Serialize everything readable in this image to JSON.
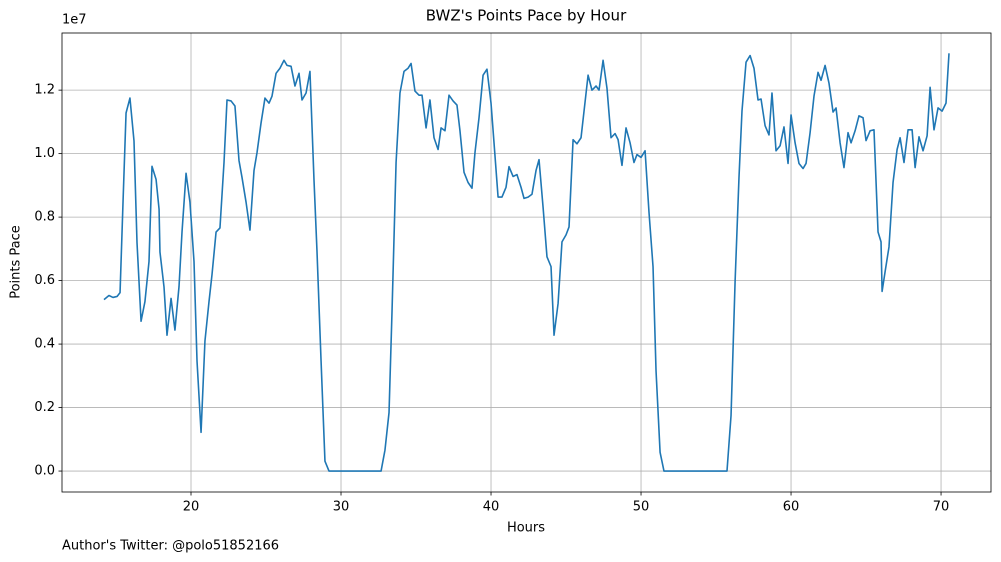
{
  "chart_data": {
    "type": "line",
    "title": "BWZ's Points Pace by Hour",
    "x_label": "Hours",
    "y_label": "Points Pace",
    "y_offset_label": "1e7",
    "footnote": "Author's Twitter: @polo51852166",
    "color": "#1f77b4",
    "grid": true,
    "x": [
      14.2,
      14.53,
      14.8,
      15.07,
      15.27,
      15.47,
      15.67,
      15.93,
      16.2,
      16.4,
      16.67,
      16.93,
      17.2,
      17.4,
      17.67,
      17.87,
      17.93,
      18.2,
      18.4,
      18.67,
      18.93,
      19.2,
      19.4,
      19.67,
      19.93,
      20.2,
      20.4,
      20.67,
      20.93,
      21.2,
      21.4,
      21.67,
      21.93,
      22.2,
      22.4,
      22.67,
      22.93,
      23.2,
      23.4,
      23.67,
      23.93,
      24.2,
      24.4,
      24.67,
      24.93,
      25.2,
      25.4,
      25.67,
      25.93,
      26.2,
      26.4,
      26.67,
      26.93,
      27.2,
      27.4,
      27.67,
      27.93,
      28.2,
      28.4,
      28.67,
      28.93,
      29.2,
      30,
      31,
      32,
      32.67,
      32.93,
      33.2,
      33.4,
      33.67,
      33.93,
      34.2,
      34.47,
      34.67,
      34.93,
      35.2,
      35.4,
      35.67,
      35.93,
      36.2,
      36.47,
      36.67,
      36.93,
      37.2,
      37.47,
      37.73,
      37.93,
      38.2,
      38.47,
      38.73,
      38.93,
      39.2,
      39.47,
      39.73,
      40,
      40.2,
      40.47,
      40.73,
      41,
      41.2,
      41.47,
      41.73,
      42,
      42.2,
      42.47,
      42.73,
      43,
      43.2,
      43.47,
      43.73,
      44,
      44.2,
      44.47,
      44.73,
      45,
      45.2,
      45.47,
      45.73,
      46,
      46.47,
      46.73,
      47,
      47.2,
      47.47,
      47.73,
      48,
      48.27,
      48.47,
      48.73,
      49,
      49.27,
      49.53,
      49.73,
      50,
      50.27,
      50.53,
      50.8,
      51,
      51.27,
      51.53,
      53,
      54,
      55,
      55.73,
      56,
      56.27,
      56.53,
      56.73,
      57,
      57.27,
      57.53,
      57.8,
      58,
      58.27,
      58.53,
      58.73,
      59,
      59.27,
      59.53,
      59.8,
      60,
      60.27,
      60.53,
      60.8,
      61,
      61.27,
      61.53,
      61.8,
      62,
      62.27,
      62.53,
      62.8,
      63,
      63.27,
      63.53,
      63.8,
      64,
      64.27,
      64.53,
      64.8,
      65,
      65.27,
      65.53,
      65.8,
      66,
      66.07,
      66.27,
      66.53,
      66.8,
      67.07,
      67.27,
      67.53,
      67.8,
      68.07,
      68.27,
      68.53,
      68.8,
      69.07,
      69.27,
      69.53,
      69.8,
      70.07,
      70.33,
      70.53
    ],
    "values": [
      5400000,
      5530000,
      5470000,
      5500000,
      5620000,
      8500000,
      11280000,
      11750000,
      10400000,
      7200000,
      4720000,
      5340000,
      6600000,
      9600000,
      9190000,
      8250000,
      6900000,
      5800000,
      4280000,
      5440000,
      4440000,
      5810000,
      7530000,
      9380000,
      8470000,
      6600000,
      3470000,
      1220000,
      4100000,
      5340000,
      6190000,
      7530000,
      7660000,
      9720000,
      11690000,
      11660000,
      11500000,
      9780000,
      9250000,
      8470000,
      7590000,
      9470000,
      10030000,
      10970000,
      11750000,
      11590000,
      11810000,
      12530000,
      12690000,
      12940000,
      12780000,
      12750000,
      12130000,
      12530000,
      11690000,
      11910000,
      12590000,
      9160000,
      6910000,
      3470000,
      310000,
      0,
      0,
      0,
      0,
      0,
      660000,
      1840000,
      5030000,
      9720000,
      11910000,
      12590000,
      12690000,
      12840000,
      11970000,
      11840000,
      11840000,
      10810000,
      11690000,
      10500000,
      10130000,
      10810000,
      10720000,
      11840000,
      11660000,
      11530000,
      10720000,
      9410000,
      9090000,
      8910000,
      10030000,
      11130000,
      12470000,
      12660000,
      11590000,
      10340000,
      8630000,
      8630000,
      8940000,
      9590000,
      9280000,
      9340000,
      8940000,
      8590000,
      8630000,
      8720000,
      9470000,
      9810000,
      8310000,
      6750000,
      6440000,
      4280000,
      5280000,
      7220000,
      7440000,
      7690000,
      10440000,
      10310000,
      10500000,
      12470000,
      12000000,
      12130000,
      12000000,
      12940000,
      12060000,
      10500000,
      10630000,
      10440000,
      9630000,
      10810000,
      10340000,
      9720000,
      9970000,
      9880000,
      10090000,
      8160000,
      6440000,
      3160000,
      590000,
      0,
      0,
      0,
      0,
      0,
      1750000,
      5970000,
      9250000,
      11340000,
      12880000,
      13090000,
      12690000,
      11690000,
      11720000,
      10880000,
      10590000,
      11910000,
      10090000,
      10250000,
      10840000,
      9690000,
      11220000,
      10340000,
      9690000,
      9530000,
      9690000,
      10660000,
      11810000,
      12560000,
      12310000,
      12780000,
      12220000,
      11310000,
      11440000,
      10340000,
      9560000,
      10660000,
      10340000,
      10720000,
      11190000,
      11130000,
      10410000,
      10720000,
      10750000,
      7530000,
      7220000,
      5660000,
      6280000,
      7060000,
      9090000,
      10130000,
      10500000,
      9720000,
      10750000,
      10750000,
      9560000,
      10530000,
      10090000,
      10560000,
      12090000,
      10750000,
      11440000,
      11340000,
      11590000,
      13160000
    ],
    "xlim": [
      11.4,
      73.33
    ],
    "xticks": [
      20,
      30,
      40,
      50,
      60,
      70
    ],
    "ylim": [
      -660000,
      13800000
    ],
    "yticks": [
      {
        "value": 0,
        "label": "0.0"
      },
      {
        "value": 2000000,
        "label": "0.2"
      },
      {
        "value": 4000000,
        "label": "0.4"
      },
      {
        "value": 6000000,
        "label": "0.6"
      },
      {
        "value": 8000000,
        "label": "0.8"
      },
      {
        "value": 10000000,
        "label": "1.0"
      },
      {
        "value": 12000000,
        "label": "1.2"
      }
    ]
  }
}
